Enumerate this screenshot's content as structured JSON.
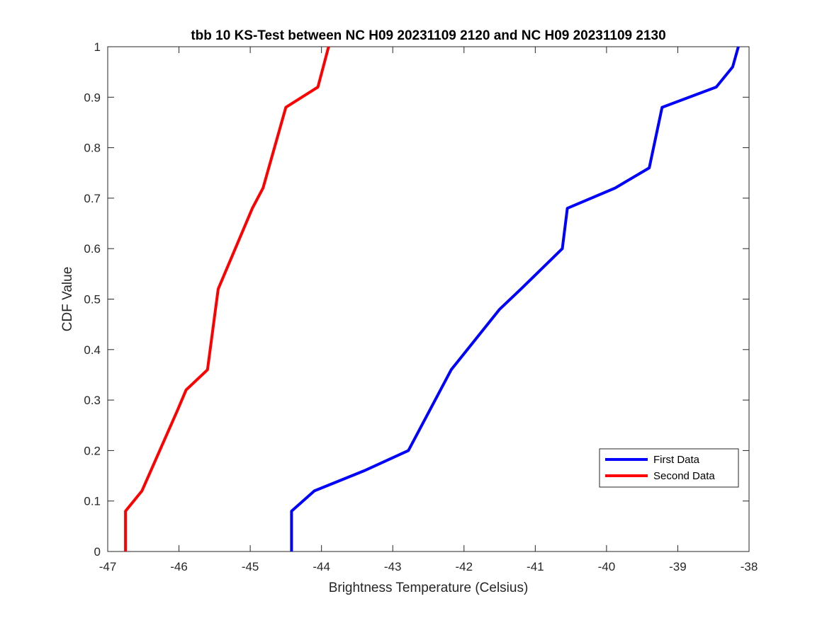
{
  "chart_data": {
    "type": "line",
    "title": "tbb 10 KS-Test between NC H09 20231109 2120 and NC H09 20231109 2130",
    "xlabel": "Brightness Temperature (Celsius)",
    "ylabel": "CDF Value",
    "xlim": [
      -47,
      -38
    ],
    "ylim": [
      0,
      1
    ],
    "xticks": [
      -47,
      -46,
      -45,
      -44,
      -43,
      -42,
      -41,
      -40,
      -39,
      -38
    ],
    "yticks": [
      0,
      0.1,
      0.2,
      0.3,
      0.4,
      0.5,
      0.6,
      0.7,
      0.8,
      0.9,
      1
    ],
    "grid": false,
    "legend_position": "lower-right",
    "series": [
      {
        "name": "First Data",
        "color": "#0000ff",
        "x": [
          -44.42,
          -44.42,
          -44.1,
          -43.4,
          -42.78,
          -42.18,
          -41.5,
          -41.2,
          -40.62,
          -40.55,
          -39.88,
          -39.4,
          -39.22,
          -38.46,
          -38.23,
          -38.15
        ],
        "y": [
          0,
          0.08,
          0.12,
          0.16,
          0.2,
          0.36,
          0.48,
          0.52,
          0.6,
          0.68,
          0.72,
          0.76,
          0.88,
          0.92,
          0.96,
          1.0
        ]
      },
      {
        "name": "Second Data",
        "color": "#ff0000",
        "x": [
          -46.75,
          -46.75,
          -46.52,
          -46.02,
          -45.9,
          -45.6,
          -45.45,
          -44.97,
          -44.82,
          -44.5,
          -44.05,
          -43.9
        ],
        "y": [
          0,
          0.08,
          0.12,
          0.28,
          0.32,
          0.36,
          0.52,
          0.68,
          0.72,
          0.88,
          0.92,
          1.0
        ]
      }
    ]
  }
}
